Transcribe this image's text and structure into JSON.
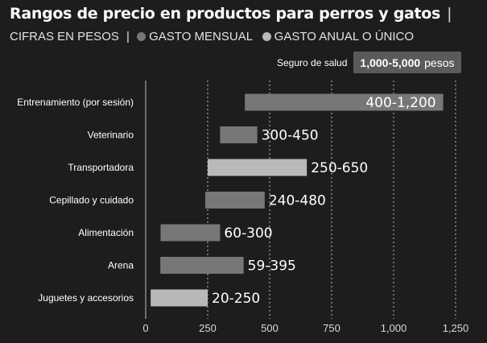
{
  "header": {
    "title": "Rangos de precio en productos para perros y gatos",
    "title_sep": "|",
    "subtitle_prefix": "CIFRAS EN PESOS",
    "subtitle_sep": "|"
  },
  "legend": [
    {
      "label": "GASTO MENSUAL",
      "color": "#777777"
    },
    {
      "label": "GASTO ANUAL O ÚNICO",
      "color": "#b9b9b9"
    }
  ],
  "callout": {
    "label": "Seguro de salud",
    "value": "1,000-5,000",
    "unit": "pesos"
  },
  "chart_data": {
    "type": "bar",
    "orientation": "horizontal-range",
    "title": "Rangos de precio en productos para perros y gatos",
    "categories": [
      "Entrenamiento (por sesión)",
      "Veterinario",
      "Transportadora",
      "Cepillado y cuidado",
      "Alimentación",
      "Arena",
      "Juguetes y accesorios"
    ],
    "series": [
      {
        "name": "GASTO MENSUAL",
        "color": "#777777",
        "points": [
          {
            "category": "Entrenamiento (por sesión)",
            "min": 400,
            "max": 1200,
            "label": "400-1,200"
          },
          {
            "category": "Veterinario",
            "min": 300,
            "max": 450,
            "label": "300-450"
          },
          {
            "category": "Cepillado y cuidado",
            "min": 240,
            "max": 480,
            "label": "240-480"
          },
          {
            "category": "Alimentación",
            "min": 60,
            "max": 300,
            "label": "60-300"
          },
          {
            "category": "Arena",
            "min": 59,
            "max": 395,
            "label": "59-395"
          }
        ]
      },
      {
        "name": "GASTO ANUAL O ÚNICO",
        "color": "#b9b9b9",
        "points": [
          {
            "category": "Transportadora",
            "min": 250,
            "max": 650,
            "label": "250-650"
          },
          {
            "category": "Juguetes y accesorios",
            "min": 20,
            "max": 250,
            "label": "20-250"
          }
        ]
      }
    ],
    "xlim": [
      0,
      1250
    ],
    "xticks": [
      0,
      250,
      500,
      750,
      1000,
      1250
    ],
    "xtick_labels": [
      "0",
      "250",
      "500",
      "750",
      "1,000",
      "1,250"
    ],
    "grid": "vertical-dashed",
    "value_label_inside": [
      "Entrenamiento (por sesión)"
    ]
  }
}
